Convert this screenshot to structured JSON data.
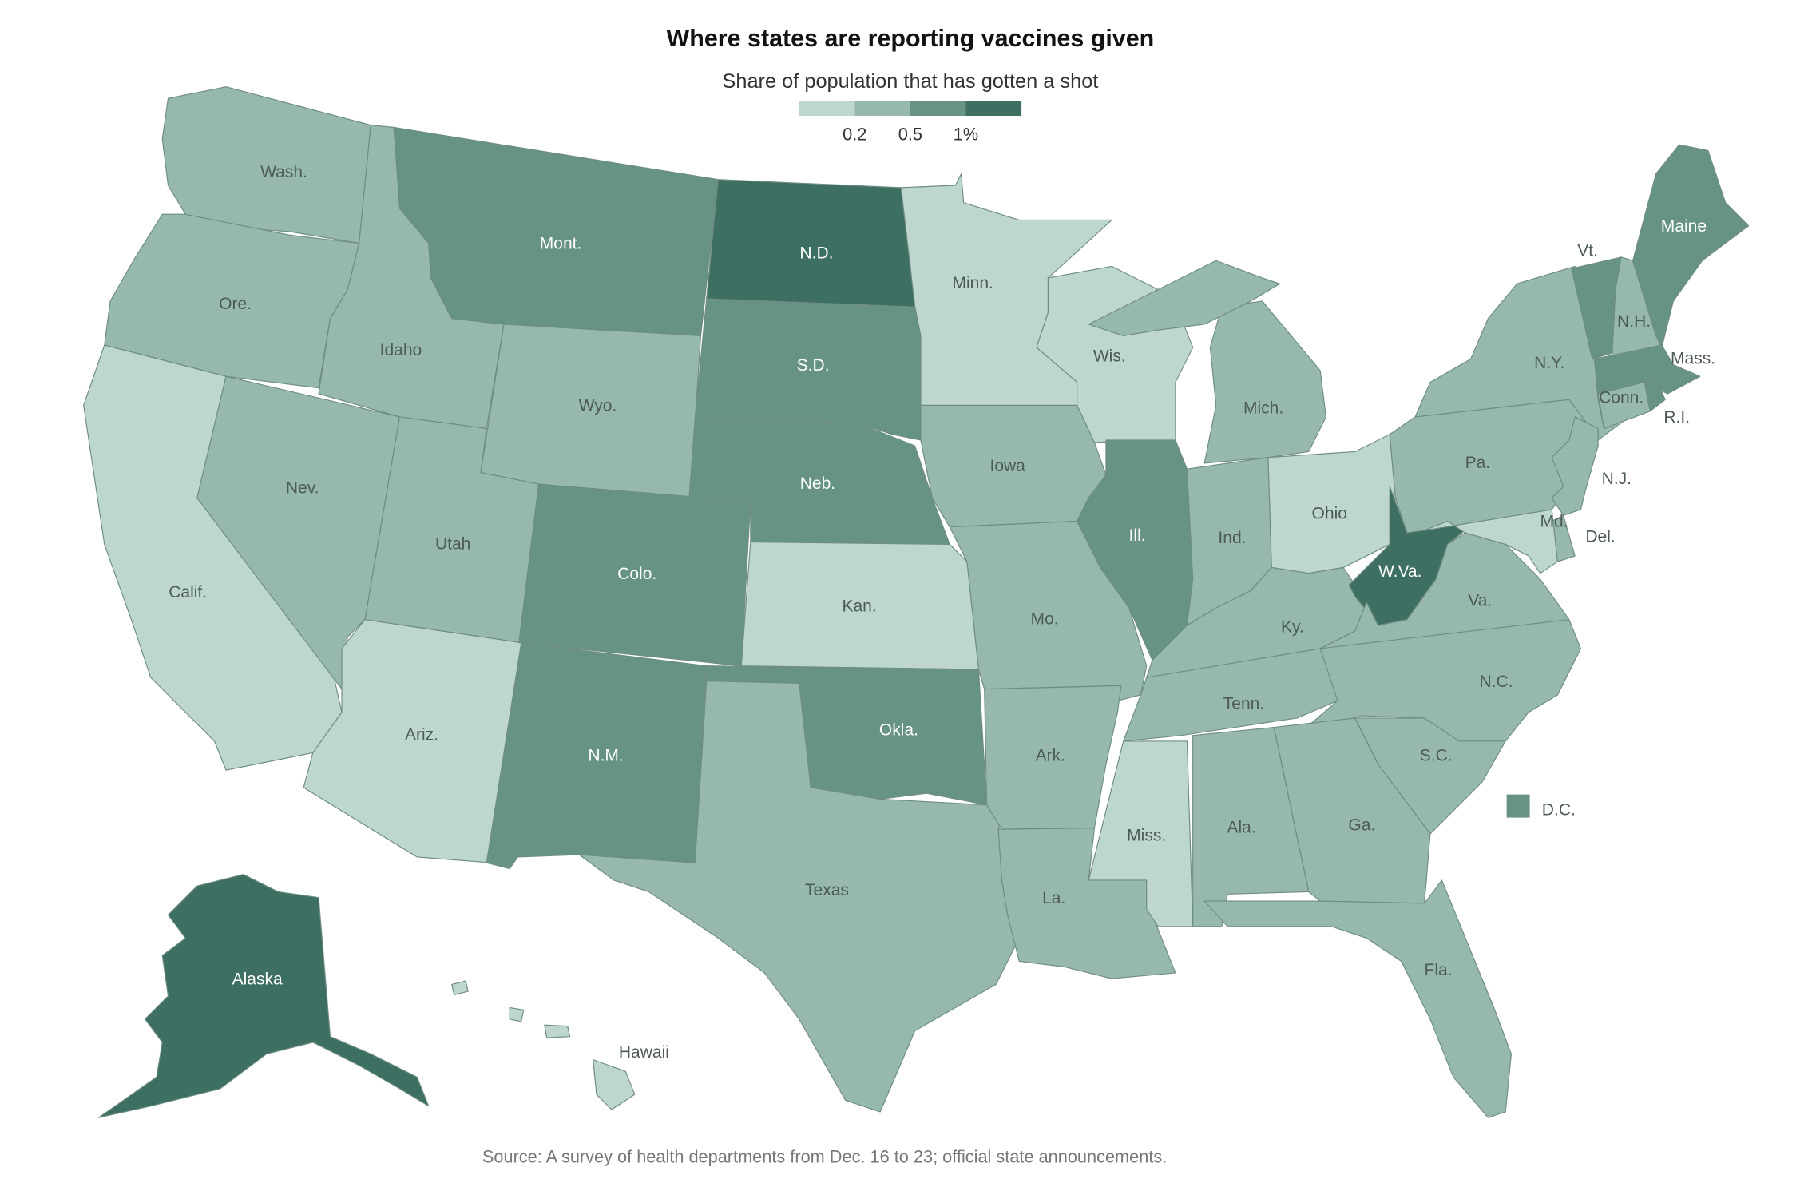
{
  "header": {
    "title": "Where states are reporting vaccines given",
    "subtitle": "Share of population that has gotten a shot"
  },
  "legend": {
    "colors": [
      "#bdd6ce",
      "#96b8ad",
      "#679385",
      "#3e6f63"
    ],
    "ticks": [
      "0.2",
      "0.5",
      "1%"
    ]
  },
  "states": [
    {
      "id": "WA",
      "label": "Wash.",
      "level": 2
    },
    {
      "id": "OR",
      "label": "Ore.",
      "level": 2
    },
    {
      "id": "CA",
      "label": "Calif.",
      "level": 1
    },
    {
      "id": "ID",
      "label": "Idaho",
      "level": 2
    },
    {
      "id": "NV",
      "label": "Nev.",
      "level": 2
    },
    {
      "id": "MT",
      "label": "Mont.",
      "level": 3
    },
    {
      "id": "WY",
      "label": "Wyo.",
      "level": 2
    },
    {
      "id": "UT",
      "label": "Utah",
      "level": 2
    },
    {
      "id": "AZ",
      "label": "Ariz.",
      "level": 1
    },
    {
      "id": "CO",
      "label": "Colo.",
      "level": 3
    },
    {
      "id": "NM",
      "label": "N.M.",
      "level": 3
    },
    {
      "id": "ND",
      "label": "N.D.",
      "level": 4
    },
    {
      "id": "SD",
      "label": "S.D.",
      "level": 3
    },
    {
      "id": "NE",
      "label": "Neb.",
      "level": 3
    },
    {
      "id": "KS",
      "label": "Kan.",
      "level": 1
    },
    {
      "id": "OK",
      "label": "Okla.",
      "level": 3
    },
    {
      "id": "TX",
      "label": "Texas",
      "level": 2
    },
    {
      "id": "MN",
      "label": "Minn.",
      "level": 1
    },
    {
      "id": "WI",
      "label": "Wis.",
      "level": 1
    },
    {
      "id": "IA",
      "label": "Iowa",
      "level": 2
    },
    {
      "id": "MO",
      "label": "Mo.",
      "level": 2
    },
    {
      "id": "AR",
      "label": "Ark.",
      "level": 2
    },
    {
      "id": "LA",
      "label": "La.",
      "level": 2
    },
    {
      "id": "MS",
      "label": "Miss.",
      "level": 1
    },
    {
      "id": "IL",
      "label": "Ill.",
      "level": 3
    },
    {
      "id": "IN",
      "label": "Ind.",
      "level": 2
    },
    {
      "id": "MI",
      "label": "Mich.",
      "level": 2
    },
    {
      "id": "OH",
      "label": "Ohio",
      "level": 1
    },
    {
      "id": "KY",
      "label": "Ky.",
      "level": 2
    },
    {
      "id": "TN",
      "label": "Tenn.",
      "level": 2
    },
    {
      "id": "WV",
      "label": "W.Va.",
      "level": 4
    },
    {
      "id": "VA",
      "label": "Va.",
      "level": 2
    },
    {
      "id": "NC",
      "label": "N.C.",
      "level": 2
    },
    {
      "id": "SC",
      "label": "S.C.",
      "level": 2
    },
    {
      "id": "GA",
      "label": "Ga.",
      "level": 2
    },
    {
      "id": "AL",
      "label": "Ala.",
      "level": 2
    },
    {
      "id": "FL",
      "label": "Fla.",
      "level": 2
    },
    {
      "id": "PA",
      "label": "Pa.",
      "level": 2
    },
    {
      "id": "NY",
      "label": "N.Y.",
      "level": 2
    },
    {
      "id": "VT",
      "label": "Vt.",
      "level": 3
    },
    {
      "id": "NH",
      "label": "N.H.",
      "level": 2
    },
    {
      "id": "ME",
      "label": "Maine",
      "level": 3
    },
    {
      "id": "MA",
      "label": "Mass.",
      "level": 3
    },
    {
      "id": "CT",
      "label": "Conn.",
      "level": 2
    },
    {
      "id": "RI",
      "label": "R.I.",
      "level": 3
    },
    {
      "id": "NJ",
      "label": "N.J.",
      "level": 2
    },
    {
      "id": "DE",
      "label": "Del.",
      "level": 2
    },
    {
      "id": "MD",
      "label": "Md.",
      "level": 1
    },
    {
      "id": "AK",
      "label": "Alaska",
      "level": 4
    },
    {
      "id": "HI",
      "label": "Hawaii",
      "level": 1
    },
    {
      "id": "DC",
      "label": "D.C.",
      "level": 3
    }
  ],
  "footer": {
    "source": "Source: A survey of health departments from Dec. 16 to 23; official state announcements."
  }
}
